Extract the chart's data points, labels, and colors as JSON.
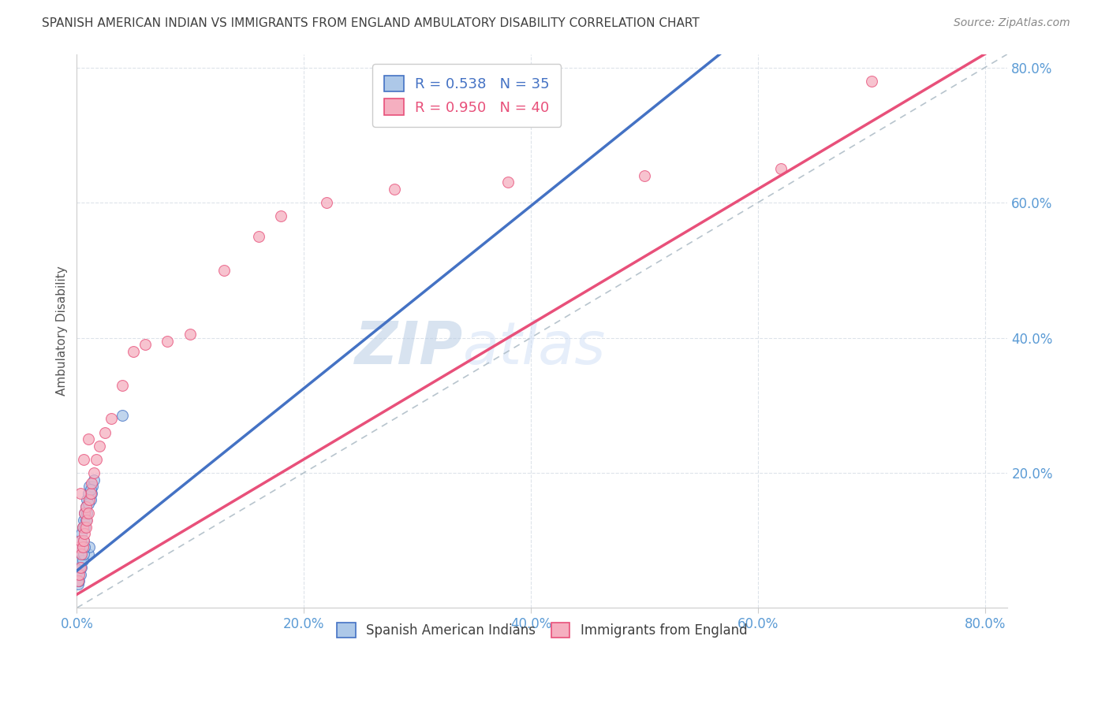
{
  "title": "SPANISH AMERICAN INDIAN VS IMMIGRANTS FROM ENGLAND AMBULATORY DISABILITY CORRELATION CHART",
  "source": "Source: ZipAtlas.com",
  "ylabel": "Ambulatory Disability",
  "xlim": [
    0.0,
    0.82
  ],
  "ylim": [
    0.0,
    0.82
  ],
  "xtick_labels": [
    "0.0%",
    "20.0%",
    "40.0%",
    "60.0%",
    "80.0%"
  ],
  "xtick_positions": [
    0.0,
    0.2,
    0.4,
    0.6,
    0.8
  ],
  "ytick_labels": [
    "20.0%",
    "40.0%",
    "60.0%",
    "80.0%"
  ],
  "ytick_positions": [
    0.2,
    0.4,
    0.6,
    0.8
  ],
  "legend1_label": "R = 0.538   N = 35",
  "legend2_label": "R = 0.950   N = 40",
  "legend1_color": "#adc8e8",
  "legend2_color": "#f5afc0",
  "scatter1_color": "#adc8e8",
  "scatter2_color": "#f5afc0",
  "line1_color": "#4472c4",
  "line2_color": "#e8507a",
  "dashed_line_color": "#b0bec8",
  "background_color": "#ffffff",
  "grid_color": "#dde3ea",
  "watermark": "ZIPatlas",
  "watermark_color": "#c8d8f0",
  "bottom_legend1": "Spanish American Indians",
  "bottom_legend2": "Immigrants from England",
  "title_color": "#404040",
  "axis_label_color": "#5b9bd5",
  "scatter1_x": [
    0.001,
    0.002,
    0.002,
    0.003,
    0.003,
    0.004,
    0.004,
    0.005,
    0.005,
    0.006,
    0.006,
    0.007,
    0.007,
    0.008,
    0.008,
    0.009,
    0.009,
    0.01,
    0.01,
    0.011,
    0.011,
    0.012,
    0.013,
    0.014,
    0.015,
    0.001,
    0.002,
    0.003,
    0.004,
    0.005,
    0.006,
    0.007,
    0.01,
    0.012,
    0.04
  ],
  "scatter1_y": [
    0.055,
    0.06,
    0.09,
    0.07,
    0.1,
    0.08,
    0.11,
    0.09,
    0.12,
    0.1,
    0.13,
    0.12,
    0.14,
    0.13,
    0.15,
    0.14,
    0.16,
    0.08,
    0.17,
    0.09,
    0.18,
    0.16,
    0.17,
    0.18,
    0.19,
    0.035,
    0.04,
    0.05,
    0.06,
    0.07,
    0.08,
    0.09,
    0.155,
    0.175,
    0.285
  ],
  "scatter2_x": [
    0.001,
    0.002,
    0.002,
    0.003,
    0.003,
    0.004,
    0.005,
    0.005,
    0.006,
    0.007,
    0.007,
    0.008,
    0.008,
    0.009,
    0.01,
    0.011,
    0.012,
    0.013,
    0.015,
    0.017,
    0.02,
    0.025,
    0.03,
    0.04,
    0.05,
    0.06,
    0.08,
    0.1,
    0.13,
    0.16,
    0.18,
    0.22,
    0.28,
    0.38,
    0.5,
    0.62,
    0.7,
    0.003,
    0.006,
    0.01
  ],
  "scatter2_y": [
    0.04,
    0.05,
    0.09,
    0.06,
    0.1,
    0.08,
    0.09,
    0.12,
    0.1,
    0.11,
    0.14,
    0.12,
    0.15,
    0.13,
    0.14,
    0.16,
    0.17,
    0.185,
    0.2,
    0.22,
    0.24,
    0.26,
    0.28,
    0.33,
    0.38,
    0.39,
    0.395,
    0.405,
    0.5,
    0.55,
    0.58,
    0.6,
    0.62,
    0.63,
    0.64,
    0.65,
    0.78,
    0.17,
    0.22,
    0.25
  ],
  "line1_slope": 1.35,
  "line1_intercept": 0.055,
  "line2_slope": 1.0,
  "line2_intercept": 0.02,
  "dashed_slope": 1.0,
  "dashed_intercept": 0.0
}
